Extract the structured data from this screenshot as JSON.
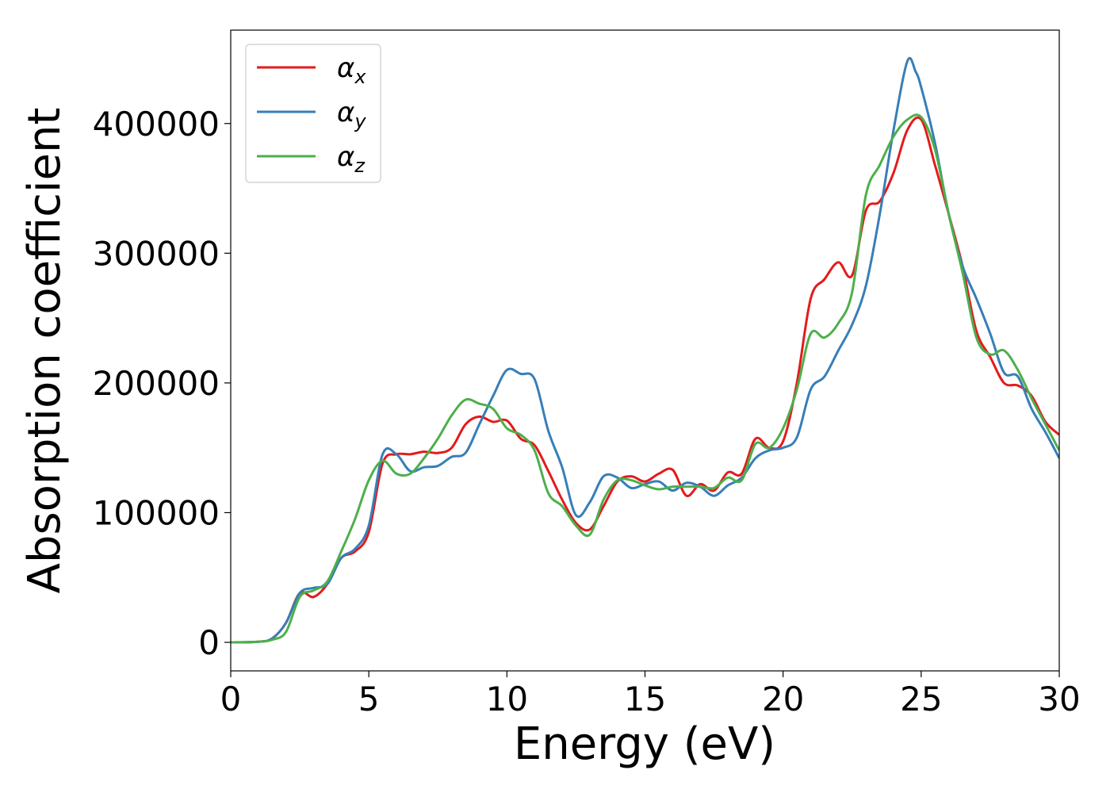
{
  "chart_data": {
    "type": "line",
    "title": "",
    "xlabel": "Energy (eV)",
    "ylabel": "Absorption coefficient",
    "xlim": [
      0,
      30
    ],
    "ylim": [
      -22000,
      472000
    ],
    "xticks": [
      0,
      5,
      10,
      15,
      20,
      25,
      30
    ],
    "xtick_labels": [
      "0",
      "5",
      "10",
      "15",
      "20",
      "25",
      "30"
    ],
    "yticks": [
      0,
      100000,
      200000,
      300000,
      400000
    ],
    "ytick_labels": [
      "0",
      "100000",
      "200000",
      "300000",
      "400000"
    ],
    "grid": false,
    "legend": {
      "placement": "top-left"
    },
    "series": [
      {
        "name": "α",
        "subscript": "x",
        "color": "#e41a1c",
        "x": [
          0,
          1,
          1.5,
          2,
          2.5,
          3,
          3.5,
          4,
          4.5,
          5,
          5.5,
          6,
          6.5,
          7,
          7.5,
          8,
          8.5,
          9,
          9.5,
          10,
          10.5,
          11,
          11.5,
          12,
          12.5,
          13,
          13.5,
          14,
          14.5,
          15,
          15.5,
          16,
          16.5,
          17,
          17.5,
          18,
          18.5,
          19,
          19.5,
          20,
          20.5,
          21,
          21.5,
          22,
          22.5,
          23,
          23.5,
          24,
          24.5,
          25,
          25.5,
          26,
          26.5,
          27,
          27.5,
          28,
          28.5,
          29,
          29.5,
          30
        ],
        "values": [
          0,
          500,
          3000,
          15000,
          38000,
          35000,
          45000,
          65000,
          70000,
          85000,
          138000,
          145000,
          145000,
          147000,
          146000,
          150000,
          168000,
          174000,
          170000,
          171000,
          157000,
          152000,
          132000,
          110000,
          92000,
          87000,
          105000,
          124000,
          128000,
          124000,
          130000,
          133000,
          113000,
          122000,
          117000,
          131000,
          130000,
          157000,
          150000,
          155000,
          200000,
          265000,
          280000,
          293000,
          283000,
          333000,
          340000,
          362000,
          395000,
          403000,
          368000,
          330000,
          290000,
          240000,
          220000,
          200000,
          198000,
          190000,
          170000,
          160000
        ]
      },
      {
        "name": "α",
        "subscript": "y",
        "color": "#377eb8",
        "x": [
          0,
          1,
          1.5,
          2,
          2.5,
          3,
          3.5,
          4,
          4.5,
          5,
          5.5,
          6,
          6.5,
          7,
          7.5,
          8,
          8.5,
          9,
          9.5,
          10,
          10.5,
          11,
          11.5,
          12,
          12.5,
          13,
          13.5,
          14,
          14.5,
          15,
          15.5,
          16,
          16.5,
          17,
          17.5,
          18,
          18.5,
          19,
          19.5,
          20,
          20.5,
          21,
          21.5,
          22,
          22.5,
          23,
          23.5,
          24,
          24.5,
          24.8,
          25,
          25.5,
          26,
          26.5,
          27,
          27.5,
          28,
          28.5,
          29,
          29.5,
          30
        ],
        "values": [
          0,
          500,
          3000,
          15000,
          38000,
          42000,
          45000,
          65000,
          72000,
          90000,
          145000,
          145000,
          132000,
          135000,
          136000,
          143000,
          146000,
          168000,
          190000,
          210000,
          207000,
          203000,
          163000,
          135000,
          98000,
          108000,
          128000,
          127000,
          119000,
          122000,
          124000,
          117000,
          123000,
          120000,
          113000,
          121000,
          127000,
          142000,
          148000,
          150000,
          158000,
          195000,
          205000,
          225000,
          245000,
          275000,
          330000,
          395000,
          448000,
          440000,
          428000,
          385000,
          330000,
          290000,
          265000,
          238000,
          208000,
          205000,
          180000,
          162000,
          142000
        ]
      },
      {
        "name": "α",
        "subscript": "z",
        "color": "#4daf4a",
        "x": [
          0,
          1,
          1.5,
          2,
          2.5,
          3,
          3.5,
          4,
          4.5,
          5,
          5.5,
          6,
          6.5,
          7,
          7.5,
          8,
          8.5,
          9,
          9.5,
          10,
          10.5,
          11,
          11.5,
          12,
          12.5,
          13,
          13.5,
          14,
          14.5,
          15,
          15.5,
          16,
          16.5,
          17,
          17.5,
          18,
          18.5,
          19,
          19.5,
          20,
          20.5,
          21,
          21.5,
          22,
          22.5,
          23,
          23.5,
          24,
          24.5,
          25,
          25.5,
          26,
          26.5,
          27,
          27.5,
          28,
          28.5,
          29,
          29.5,
          30
        ],
        "values": [
          0,
          500,
          2000,
          8000,
          35000,
          40000,
          47000,
          70000,
          95000,
          125000,
          140000,
          130000,
          130000,
          142000,
          157000,
          175000,
          187000,
          184000,
          180000,
          165000,
          160000,
          148000,
          115000,
          105000,
          90000,
          83000,
          110000,
          125000,
          125000,
          121000,
          118000,
          120000,
          120000,
          120000,
          119000,
          127000,
          125000,
          153000,
          150000,
          165000,
          195000,
          238000,
          235000,
          246000,
          270000,
          345000,
          368000,
          390000,
          403000,
          405000,
          380000,
          330000,
          285000,
          235000,
          222000,
          225000,
          210000,
          188000,
          168000,
          148000
        ]
      }
    ]
  }
}
